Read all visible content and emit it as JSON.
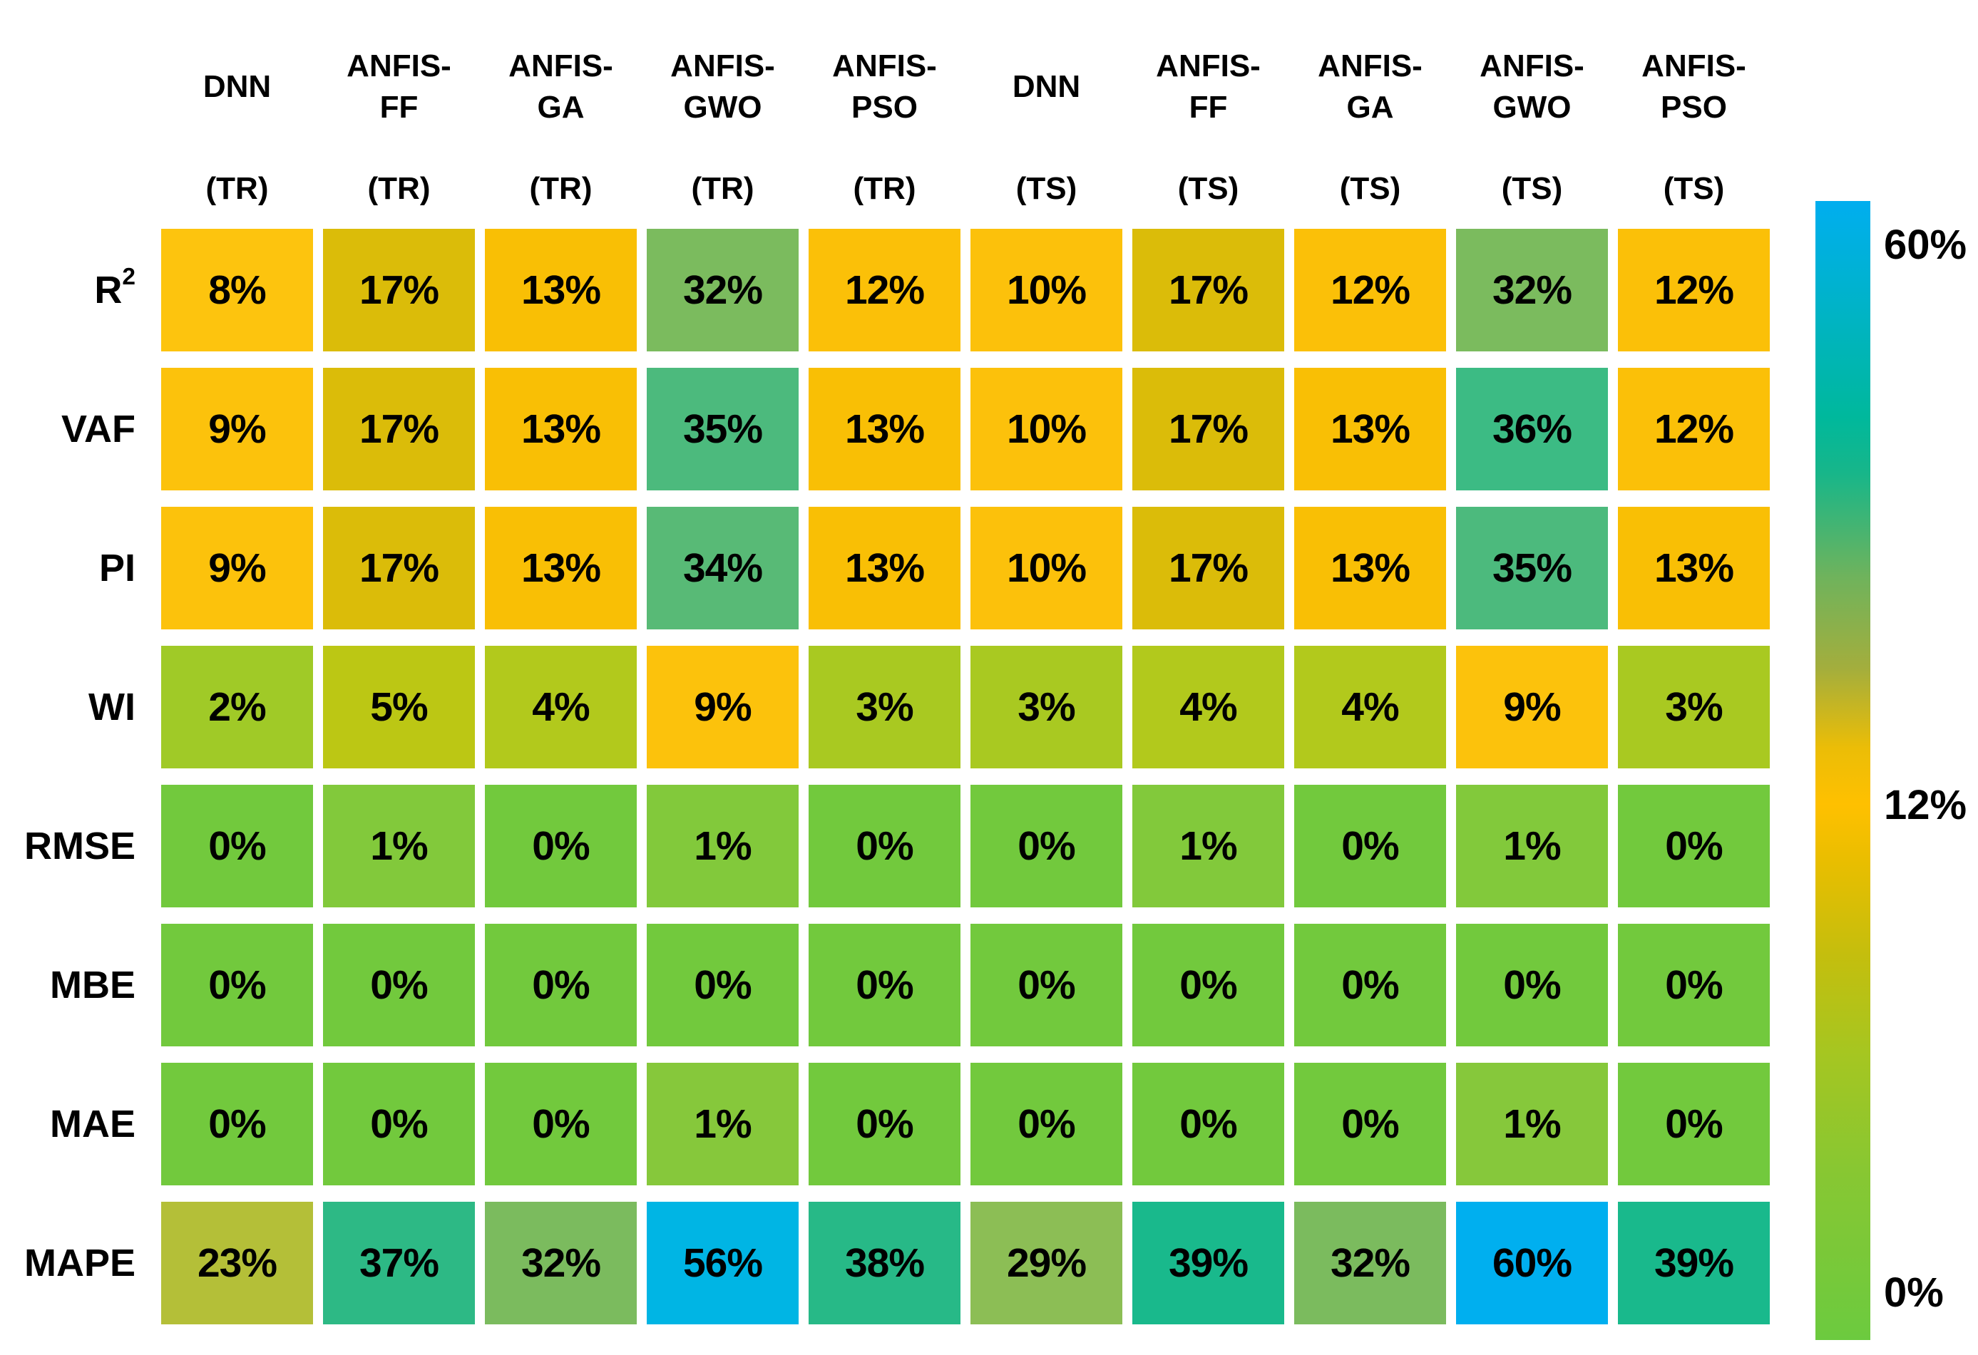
{
  "chart_data": {
    "type": "heatmap",
    "title": "",
    "columns": [
      {
        "name": "DNN",
        "suffix": "(TR)"
      },
      {
        "name": "ANFIS-\nFF",
        "suffix": "(TR)"
      },
      {
        "name": "ANFIS-\nGA",
        "suffix": "(TR)"
      },
      {
        "name": "ANFIS-\nGWO",
        "suffix": "(TR)"
      },
      {
        "name": "ANFIS-\nPSO",
        "suffix": "(TR)"
      },
      {
        "name": "DNN",
        "suffix": "(TS)"
      },
      {
        "name": "ANFIS-\nFF",
        "suffix": "(TS)"
      },
      {
        "name": "ANFIS-\nGA",
        "suffix": "(TS)"
      },
      {
        "name": "ANFIS-\nGWO",
        "suffix": "(TS)"
      },
      {
        "name": "ANFIS-\nPSO",
        "suffix": "(TS)"
      }
    ],
    "rows": [
      {
        "label": "R",
        "sup": "2"
      },
      {
        "label": "VAF",
        "sup": ""
      },
      {
        "label": "PI",
        "sup": ""
      },
      {
        "label": "WI",
        "sup": ""
      },
      {
        "label": "RMSE",
        "sup": ""
      },
      {
        "label": "MBE",
        "sup": ""
      },
      {
        "label": "MAE",
        "sup": ""
      },
      {
        "label": "MAPE",
        "sup": ""
      }
    ],
    "values": [
      [
        "8%",
        "17%",
        "13%",
        "32%",
        "12%",
        "10%",
        "17%",
        "12%",
        "32%",
        "12%"
      ],
      [
        "9%",
        "17%",
        "13%",
        "35%",
        "13%",
        "10%",
        "17%",
        "13%",
        "36%",
        "12%"
      ],
      [
        "9%",
        "17%",
        "13%",
        "34%",
        "13%",
        "10%",
        "17%",
        "13%",
        "35%",
        "13%"
      ],
      [
        "2%",
        "5%",
        "4%",
        "9%",
        "3%",
        "3%",
        "4%",
        "4%",
        "9%",
        "3%"
      ],
      [
        "0%",
        "1%",
        "0%",
        "1%",
        "0%",
        "0%",
        "1%",
        "0%",
        "1%",
        "0%"
      ],
      [
        "0%",
        "0%",
        "0%",
        "0%",
        "0%",
        "0%",
        "0%",
        "0%",
        "0%",
        "0%"
      ],
      [
        "0%",
        "0%",
        "0%",
        "1%",
        "0%",
        "0%",
        "0%",
        "0%",
        "1%",
        "0%"
      ],
      [
        "23%",
        "37%",
        "32%",
        "56%",
        "38%",
        "29%",
        "39%",
        "32%",
        "60%",
        "39%"
      ]
    ],
    "colors": [
      [
        "#FDC40E",
        "#DBBC09",
        "#F9BF05",
        "#7BBB5E",
        "#FBC008",
        "#FCC10B",
        "#DBBC09",
        "#FBC008",
        "#7BBB5E",
        "#FBC008"
      ],
      [
        "#FCC20C",
        "#DBBC09",
        "#F9BF05",
        "#4CBA7D",
        "#F9BF05",
        "#FCC10B",
        "#DBBC09",
        "#F9BF05",
        "#3CBB84",
        "#FBC008"
      ],
      [
        "#FCC20C",
        "#DBBC09",
        "#F9BF05",
        "#58BA76",
        "#F9BF05",
        "#FCC10B",
        "#DBBC09",
        "#F9BF05",
        "#4CBA7D",
        "#F9BF05"
      ],
      [
        "#A0CA27",
        "#BCC714",
        "#B2C91C",
        "#FCC20C",
        "#A9C921",
        "#A9C921",
        "#B2C91C",
        "#B2C91C",
        "#FCC20C",
        "#A9C921"
      ],
      [
        "#72C93D",
        "#82C93B",
        "#72C93D",
        "#82C93B",
        "#72C93D",
        "#72C93D",
        "#82C93B",
        "#72C93D",
        "#82C93B",
        "#72C93D"
      ],
      [
        "#72C93D",
        "#72C93D",
        "#72C93D",
        "#72C93D",
        "#72C93D",
        "#72C93D",
        "#72C93D",
        "#72C93D",
        "#72C93D",
        "#72C93D"
      ],
      [
        "#72C93D",
        "#72C93D",
        "#72C93D",
        "#86C83B",
        "#72C93D",
        "#72C93D",
        "#72C93D",
        "#72C93D",
        "#86C83B",
        "#72C93D"
      ],
      [
        "#B4BF38",
        "#2DB985",
        "#7BBB5E",
        "#00B5E4",
        "#27B987",
        "#8CBE55",
        "#19B98C",
        "#7BBB5E",
        "#00AFEF",
        "#19B98C"
      ]
    ],
    "legend": {
      "max_label": "60%",
      "mid_label": "12%",
      "min_label": "0%",
      "gradient_stops": [
        {
          "pos": 0,
          "color": "#00AEEF"
        },
        {
          "pos": 0.09,
          "color": "#00B3C9"
        },
        {
          "pos": 0.19,
          "color": "#00B89C"
        },
        {
          "pos": 0.24,
          "color": "#18B689"
        },
        {
          "pos": 0.33,
          "color": "#6FB35C"
        },
        {
          "pos": 0.41,
          "color": "#A3AE3D"
        },
        {
          "pos": 0.48,
          "color": "#EBBD07"
        },
        {
          "pos": 0.53,
          "color": "#FFC000"
        },
        {
          "pos": 0.58,
          "color": "#E9BE00"
        },
        {
          "pos": 0.66,
          "color": "#C5BE0D"
        },
        {
          "pos": 0.75,
          "color": "#A5C621"
        },
        {
          "pos": 0.85,
          "color": "#88C732"
        },
        {
          "pos": 1,
          "color": "#6CCA3F"
        }
      ]
    }
  }
}
